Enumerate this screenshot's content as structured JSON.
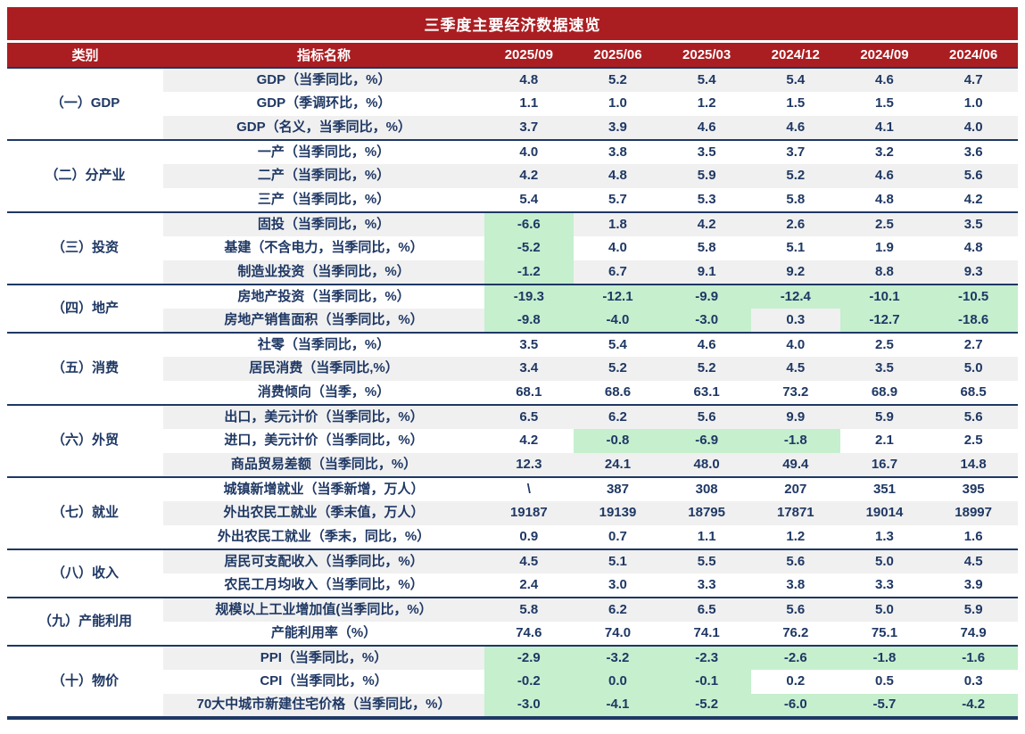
{
  "title": "三季度主要经济数据速览",
  "columns": [
    "类别",
    "指标名称",
    "2025/09",
    "2025/06",
    "2025/03",
    "2024/12",
    "2024/09",
    "2024/06"
  ],
  "colors": {
    "header_red": "#AA1E22",
    "navy": "#1F3864",
    "highlight_green": "#C6EFCE",
    "row_alt_gray": "#F0F0F0"
  },
  "groups": [
    {
      "category": "（一）GDP",
      "rows": [
        {
          "indicator": "GDP（当季同比，%）",
          "values": [
            "4.8",
            "5.2",
            "5.4",
            "5.4",
            "4.6",
            "4.7"
          ]
        },
        {
          "indicator": "GDP（季调环比，%）",
          "values": [
            "1.1",
            "1.0",
            "1.2",
            "1.5",
            "1.5",
            "1.0"
          ]
        },
        {
          "indicator": "GDP（名义，当季同比，%）",
          "values": [
            "3.7",
            "3.9",
            "4.6",
            "4.6",
            "4.1",
            "4.0"
          ]
        }
      ]
    },
    {
      "category": "（二）分产业",
      "rows": [
        {
          "indicator": "一产（当季同比，%）",
          "values": [
            "4.0",
            "3.8",
            "3.5",
            "3.7",
            "3.2",
            "3.6"
          ]
        },
        {
          "indicator": "二产（当季同比，%）",
          "values": [
            "4.2",
            "4.8",
            "5.9",
            "5.2",
            "4.6",
            "5.6"
          ]
        },
        {
          "indicator": "三产（当季同比，%）",
          "values": [
            "5.4",
            "5.7",
            "5.3",
            "5.8",
            "4.8",
            "4.2"
          ]
        }
      ]
    },
    {
      "category": "（三）投资",
      "rows": [
        {
          "indicator": "固投（当季同比，%）",
          "values": [
            "-6.6",
            "1.8",
            "4.2",
            "2.6",
            "2.5",
            "3.5"
          ],
          "hl": [
            0
          ]
        },
        {
          "indicator": "基建（不含电力，当季同比，%）",
          "values": [
            "-5.2",
            "4.0",
            "5.8",
            "5.1",
            "1.9",
            "4.8"
          ],
          "hl": [
            0
          ]
        },
        {
          "indicator": "制造业投资（当季同比，%）",
          "values": [
            "-1.2",
            "6.7",
            "9.1",
            "9.2",
            "8.8",
            "9.3"
          ],
          "hl": [
            0
          ]
        }
      ]
    },
    {
      "category": "（四）地产",
      "rows": [
        {
          "indicator": "房地产投资（当季同比，%）",
          "values": [
            "-19.3",
            "-12.1",
            "-9.9",
            "-12.4",
            "-10.1",
            "-10.5"
          ],
          "hl": [
            0,
            1,
            2,
            3,
            4,
            5
          ]
        },
        {
          "indicator": "房地产销售面积（当季同比，%）",
          "values": [
            "-9.8",
            "-4.0",
            "-3.0",
            "0.3",
            "-12.7",
            "-18.6"
          ],
          "hl": [
            0,
            1,
            2,
            4,
            5
          ]
        }
      ]
    },
    {
      "category": "（五）消费",
      "rows": [
        {
          "indicator": "社零（当季同比，%）",
          "values": [
            "3.5",
            "5.4",
            "4.6",
            "4.0",
            "2.5",
            "2.7"
          ]
        },
        {
          "indicator": "居民消费（当季同比,%）",
          "values": [
            "3.4",
            "5.2",
            "5.2",
            "4.5",
            "3.5",
            "5.0"
          ]
        },
        {
          "indicator": "消费倾向（当季，%）",
          "values": [
            "68.1",
            "68.6",
            "63.1",
            "73.2",
            "68.9",
            "68.5"
          ]
        }
      ]
    },
    {
      "category": "（六）外贸",
      "rows": [
        {
          "indicator": "出口，美元计价（当季同比，%）",
          "values": [
            "6.5",
            "6.2",
            "5.6",
            "9.9",
            "5.9",
            "5.6"
          ]
        },
        {
          "indicator": "进口，美元计价（当季同比，%）",
          "values": [
            "4.2",
            "-0.8",
            "-6.9",
            "-1.8",
            "2.1",
            "2.5"
          ],
          "hl": [
            1,
            2,
            3
          ]
        },
        {
          "indicator": "商品贸易差额（当季同比，%）",
          "values": [
            "12.3",
            "24.1",
            "48.0",
            "49.4",
            "16.7",
            "14.8"
          ]
        }
      ]
    },
    {
      "category": "（七）就业",
      "rows": [
        {
          "indicator": "城镇新增就业（当季新增，万人）",
          "values": [
            "\\",
            "387",
            "308",
            "207",
            "351",
            "395"
          ]
        },
        {
          "indicator": "外出农民工就业（季末值，万人）",
          "values": [
            "19187",
            "19139",
            "18795",
            "17871",
            "19014",
            "18997"
          ]
        },
        {
          "indicator": "外出农民工就业（季末，同比，%）",
          "values": [
            "0.9",
            "0.7",
            "1.1",
            "1.2",
            "1.3",
            "1.6"
          ]
        }
      ]
    },
    {
      "category": "（八）收入",
      "rows": [
        {
          "indicator": "居民可支配收入（当季同比，%）",
          "values": [
            "4.5",
            "5.1",
            "5.5",
            "5.6",
            "5.0",
            "4.5"
          ]
        },
        {
          "indicator": "农民工月均收入（当季同比，%）",
          "values": [
            "2.4",
            "3.0",
            "3.3",
            "3.8",
            "3.3",
            "3.9"
          ]
        }
      ]
    },
    {
      "category": "（九）产能利用",
      "rows": [
        {
          "indicator": "规模以上工业增加值(当季同比，%）",
          "values": [
            "5.8",
            "6.2",
            "6.5",
            "5.6",
            "5.0",
            "5.9"
          ]
        },
        {
          "indicator": "产能利用率（%）",
          "values": [
            "74.6",
            "74.0",
            "74.1",
            "76.2",
            "75.1",
            "74.9"
          ]
        }
      ]
    },
    {
      "category": "（十）物价",
      "rows": [
        {
          "indicator": "PPI（当季同比，%）",
          "values": [
            "-2.9",
            "-3.2",
            "-2.3",
            "-2.6",
            "-1.8",
            "-1.6"
          ],
          "hl": [
            0,
            1,
            2,
            3,
            4,
            5
          ]
        },
        {
          "indicator": "CPI（当季同比，%）",
          "values": [
            "-0.2",
            "0.0",
            "-0.1",
            "0.2",
            "0.5",
            "0.3"
          ],
          "hl": [
            0,
            1,
            2
          ]
        },
        {
          "indicator": "70大中城市新建住宅价格（当季同比，%）",
          "values": [
            "-3.0",
            "-4.1",
            "-5.2",
            "-6.0",
            "-5.7",
            "-4.2"
          ],
          "hl": [
            0,
            1,
            2,
            3,
            4,
            5
          ]
        }
      ]
    }
  ]
}
